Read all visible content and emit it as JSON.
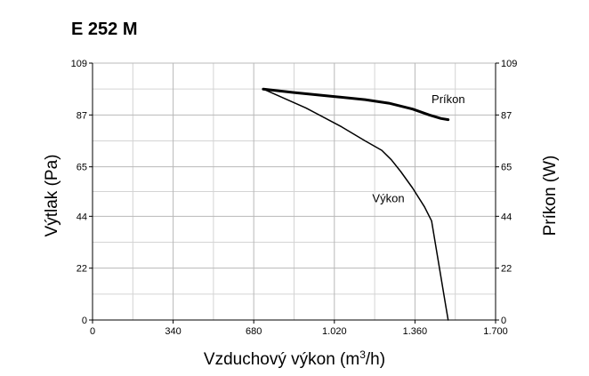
{
  "chart_data": {
    "type": "line",
    "title": "E 252 M",
    "xlabel": "Vzduchový výkon (m",
    "xlabel_sup": "3",
    "xlabel_suffix": "/h)",
    "ylabel_left": "Výtlak (Pa)",
    "ylabel_right": "Príkon (W)",
    "xlim": [
      0,
      1700
    ],
    "ylim": [
      0,
      109
    ],
    "x_ticks": [
      {
        "value": 0,
        "label": "0"
      },
      {
        "value": 340,
        "label": "340"
      },
      {
        "value": 680,
        "label": "680"
      },
      {
        "value": 1020,
        "label": "1.020"
      },
      {
        "value": 1360,
        "label": "1.360"
      },
      {
        "value": 1700,
        "label": "1.700"
      }
    ],
    "y_ticks": [
      {
        "value": 0,
        "label": "0"
      },
      {
        "value": 22,
        "label": "22"
      },
      {
        "value": 44,
        "label": "44"
      },
      {
        "value": 65,
        "label": "65"
      },
      {
        "value": 87,
        "label": "87"
      },
      {
        "value": 109,
        "label": "109"
      }
    ],
    "grid": true,
    "series": [
      {
        "name": "Príkon",
        "label_at": [
          1430,
          92
        ],
        "stroke": "#000000",
        "width": 3,
        "x": [
          720,
          850,
          1000,
          1150,
          1250,
          1350,
          1420,
          1470,
          1500
        ],
        "y": [
          98,
          96.5,
          95,
          93.5,
          92,
          89.5,
          87,
          85.5,
          85
        ]
      },
      {
        "name": "Výkon",
        "label_at": [
          1180,
          50
        ],
        "stroke": "#000000",
        "width": 1.5,
        "x": [
          720,
          900,
          1050,
          1150,
          1220,
          1260,
          1300,
          1350,
          1400,
          1430,
          1450,
          1470,
          1490,
          1500
        ],
        "y": [
          98,
          90,
          82,
          76,
          72,
          68,
          63,
          56,
          48,
          42,
          30,
          18,
          6,
          0
        ]
      }
    ]
  }
}
